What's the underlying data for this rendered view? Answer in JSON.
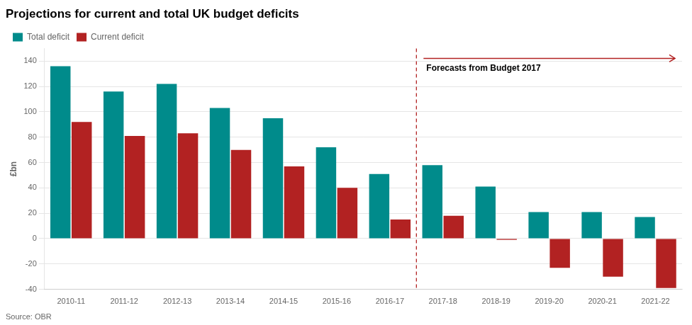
{
  "chart_data": {
    "type": "bar",
    "title": "Projections for current and total UK budget deficits",
    "ylabel": "£bn",
    "source": "Source: OBR",
    "categories": [
      "2010-11",
      "2011-12",
      "2012-13",
      "2013-14",
      "2014-15",
      "2015-16",
      "2016-17",
      "2017-18",
      "2018-19",
      "2019-20",
      "2020-21",
      "2021-22"
    ],
    "series": [
      {
        "name": "Total deficit",
        "color": "#008B8B",
        "values": [
          136,
          116,
          122,
          103,
          95,
          72,
          51,
          58,
          41,
          21,
          21,
          17
        ]
      },
      {
        "name": "Current deficit",
        "color": "#B22222",
        "values": [
          92,
          81,
          83,
          70,
          57,
          40,
          15,
          18,
          -1,
          -23,
          -30,
          -39
        ]
      }
    ],
    "annotations": [
      {
        "text": "Forecasts from Budget 2017",
        "x": "2017-18",
        "color": "#B22222"
      }
    ],
    "ylim": [
      -40,
      150
    ],
    "yticks": [
      -40,
      -20,
      0,
      20,
      40,
      60,
      80,
      100,
      120,
      140
    ],
    "grid": true,
    "legend": "upper left"
  }
}
